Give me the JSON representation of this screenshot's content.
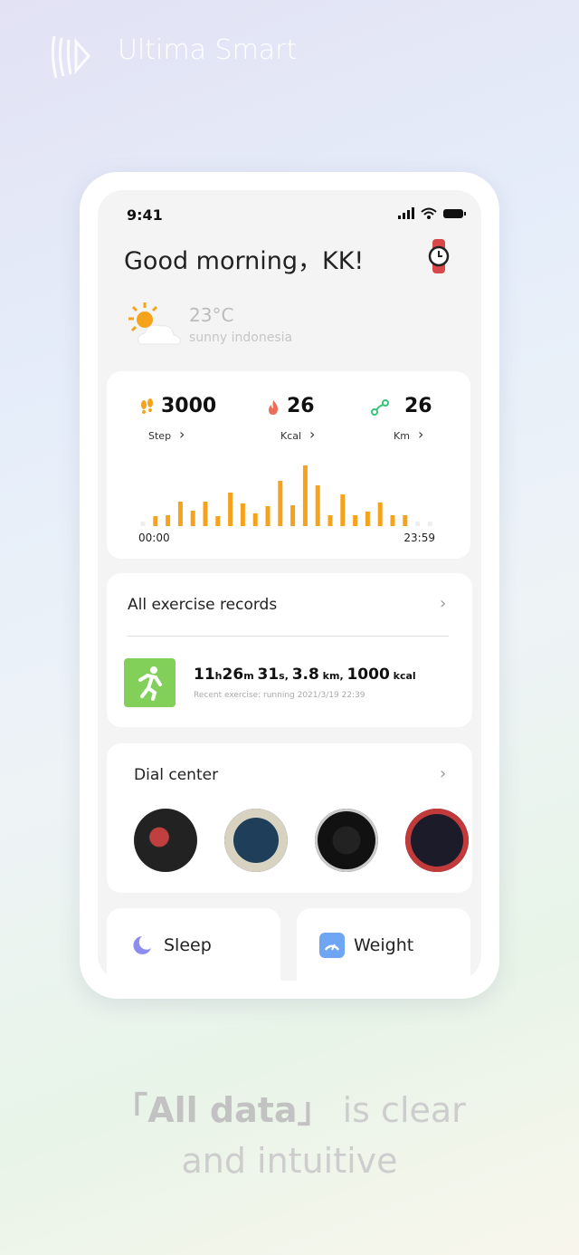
{
  "header": {
    "brand": "Ultima Smart"
  },
  "phone": {
    "status_time": "9:41",
    "greeting": "Good morning，KK!",
    "weather": {
      "temp": "23°C",
      "desc": "sunny indonesia"
    },
    "stats": [
      {
        "value": "3000",
        "label": "Step"
      },
      {
        "value": "26",
        "label": "Kcal"
      },
      {
        "value": "26",
        "label": "Km"
      }
    ],
    "chart_data": {
      "type": "bar",
      "values": [
        0,
        11,
        12,
        27,
        17,
        27,
        11,
        37,
        25,
        14,
        22,
        50,
        23,
        67,
        45,
        12,
        35,
        12,
        16,
        26,
        12,
        12,
        0,
        0
      ],
      "color": "#f5a31c",
      "x_start": "00:00",
      "x_end": "23:59"
    },
    "exercise": {
      "title": "All exercise records",
      "summary": [
        [
          "11",
          "h"
        ],
        [
          "26",
          "m "
        ],
        [
          "31",
          "s, "
        ],
        [
          "3.8",
          " km, "
        ],
        [
          "1000",
          " kcal"
        ]
      ],
      "recent": "Recent exercise: running 2021/3/19 22:39"
    },
    "dial": {
      "title": "Dial center"
    },
    "sleep": {
      "title": "Sleep"
    },
    "weight": {
      "title": "Weight"
    }
  },
  "tagline": {
    "bold": "「All data」",
    "rest": " is clear and intuitive"
  }
}
